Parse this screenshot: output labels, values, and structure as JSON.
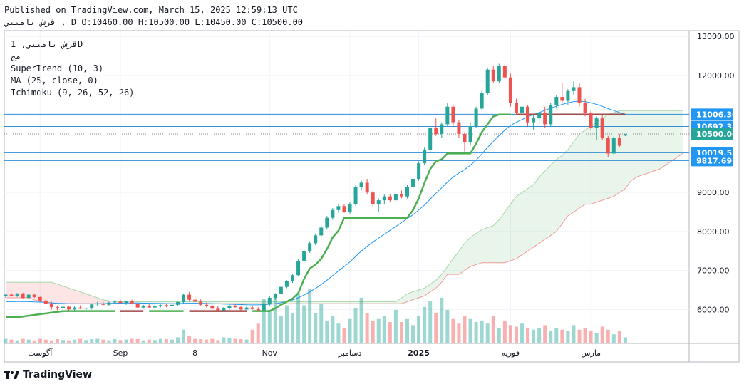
{
  "header": {
    "published": "Published on TradingView.com, March 15, 2025 12:59:13 UTC",
    "ohlc": "قرش  ناميبي , D O:10460.00 H:10500.00 L:10450.00 C:10500.00"
  },
  "legend": {
    "symbol": "قرش ناميبي, 1D",
    "alt_name": "مج",
    "supertrend": "SuperTrend (10, 3)",
    "ma": "MA (25, close, 0)",
    "ichimoku": "Ichimoku (9, 26, 52, 26)"
  },
  "brand": {
    "name": "TradingView",
    "logo_icon": "tradingview-logo-icon"
  },
  "colors": {
    "up": "#26a69a",
    "down": "#ef5350",
    "supertrend_up": "#4caf50",
    "supertrend_down": "#a04a4a",
    "ma": "#2196f3",
    "level": "#2f8ed6",
    "price_tag": "#26a69a",
    "level_tag": "#2196f3"
  },
  "chart_data": {
    "type": "candlestick",
    "ylim": [
      5130,
      13150
    ],
    "y_ticks": [
      "13000.00",
      "12000.00",
      "9000.00",
      "8000.00",
      "7000.00",
      "6000.00"
    ],
    "x_labels": [
      "آگوست",
      "Sep",
      "8",
      "Nov",
      "دسامبر",
      "2025",
      "فوريه",
      "مارس"
    ],
    "x_label_positions": [
      6,
      20,
      33,
      46,
      60,
      72,
      88,
      102
    ],
    "levels": [
      11006.3,
      10692.33,
      10019.53,
      9817.69
    ],
    "level_labels": [
      "11006.30",
      "10692.33",
      "10019.53",
      "9817.69"
    ],
    "current_price": 10500.0,
    "current_price_label": "10500.00",
    "candles": [
      [
        6350,
        6400,
        6300,
        6380
      ],
      [
        6380,
        6420,
        6330,
        6340
      ],
      [
        6340,
        6420,
        6320,
        6410
      ],
      [
        6410,
        6430,
        6280,
        6300
      ],
      [
        6300,
        6390,
        6250,
        6380
      ],
      [
        6380,
        6400,
        6300,
        6320
      ],
      [
        6320,
        6330,
        6200,
        6230
      ],
      [
        6230,
        6260,
        6130,
        6150
      ],
      [
        6150,
        6200,
        6000,
        6060
      ],
      [
        6060,
        6100,
        5980,
        6030
      ],
      [
        6030,
        6090,
        6010,
        6070
      ],
      [
        6070,
        6090,
        5980,
        6000
      ],
      [
        6000,
        6080,
        5960,
        6050
      ],
      [
        6050,
        6110,
        6010,
        6020
      ],
      [
        6020,
        6060,
        5970,
        6040
      ],
      [
        6040,
        6140,
        6000,
        6130
      ],
      [
        6130,
        6200,
        6080,
        6150
      ],
      [
        6150,
        6200,
        6100,
        6120
      ],
      [
        6120,
        6200,
        6080,
        6180
      ],
      [
        6180,
        6240,
        6150,
        6200
      ],
      [
        6200,
        6250,
        6150,
        6170
      ],
      [
        6170,
        6230,
        6120,
        6210
      ],
      [
        6210,
        6250,
        6130,
        6150
      ],
      [
        6150,
        6180,
        6030,
        6050
      ],
      [
        6050,
        6120,
        6020,
        6100
      ],
      [
        6100,
        6140,
        6030,
        6050
      ],
      [
        6050,
        6120,
        6010,
        6090
      ],
      [
        6090,
        6130,
        6050,
        6110
      ],
      [
        6110,
        6150,
        6060,
        6080
      ],
      [
        6080,
        6140,
        6050,
        6120
      ],
      [
        6120,
        6200,
        6100,
        6190
      ],
      [
        6190,
        6400,
        6160,
        6380
      ],
      [
        6380,
        6450,
        6200,
        6250
      ],
      [
        6250,
        6320,
        6180,
        6200
      ],
      [
        6200,
        6260,
        6100,
        6120
      ],
      [
        6120,
        6180,
        6050,
        6080
      ],
      [
        6080,
        6120,
        6000,
        6020
      ],
      [
        6020,
        6080,
        5950,
        5980
      ],
      [
        5980,
        6060,
        5950,
        6040
      ],
      [
        6040,
        6120,
        6000,
        6100
      ],
      [
        6100,
        6150,
        6040,
        6060
      ],
      [
        6060,
        6100,
        5980,
        6000
      ],
      [
        6000,
        6080,
        5960,
        6050
      ],
      [
        6050,
        6100,
        5990,
        6010
      ],
      [
        6010,
        6060,
        5950,
        5980
      ],
      [
        5980,
        6200,
        5960,
        6150
      ],
      [
        6150,
        6350,
        6100,
        6300
      ],
      [
        6300,
        6420,
        6250,
        6400
      ],
      [
        6400,
        6600,
        6380,
        6580
      ],
      [
        6580,
        6750,
        6550,
        6720
      ],
      [
        6720,
        6900,
        6680,
        6880
      ],
      [
        6880,
        7300,
        6850,
        7250
      ],
      [
        7250,
        7550,
        7200,
        7500
      ],
      [
        7500,
        7750,
        7450,
        7700
      ],
      [
        7700,
        7950,
        7650,
        7900
      ],
      [
        7900,
        8150,
        7850,
        8100
      ],
      [
        8100,
        8400,
        8050,
        8350
      ],
      [
        8350,
        8600,
        8300,
        8550
      ],
      [
        8550,
        8700,
        8480,
        8650
      ],
      [
        8650,
        8700,
        8480,
        8500
      ],
      [
        8500,
        8750,
        8450,
        8700
      ],
      [
        8700,
        9200,
        8650,
        9150
      ],
      [
        9150,
        9300,
        9050,
        9250
      ],
      [
        9250,
        9350,
        8950,
        9000
      ],
      [
        9000,
        9050,
        8650,
        8700
      ],
      [
        8700,
        8850,
        8500,
        8800
      ],
      [
        8800,
        8950,
        8700,
        8900
      ],
      [
        8900,
        8950,
        8750,
        8800
      ],
      [
        8800,
        9000,
        8750,
        8950
      ],
      [
        8950,
        9050,
        8850,
        8900
      ],
      [
        8900,
        9200,
        8850,
        9150
      ],
      [
        9150,
        9400,
        9100,
        9350
      ],
      [
        9350,
        9800,
        9300,
        9750
      ],
      [
        9750,
        10150,
        9700,
        10100
      ],
      [
        10100,
        10700,
        10050,
        10650
      ],
      [
        10650,
        10900,
        10450,
        10500
      ],
      [
        10500,
        10800,
        10400,
        10750
      ],
      [
        10750,
        11300,
        10700,
        11200
      ],
      [
        11200,
        11250,
        10700,
        10800
      ],
      [
        10800,
        10850,
        10400,
        10500
      ],
      [
        10500,
        10550,
        10050,
        10300
      ],
      [
        10300,
        10800,
        10200,
        10700
      ],
      [
        10700,
        11200,
        10650,
        11150
      ],
      [
        11150,
        11600,
        11100,
        11550
      ],
      [
        11550,
        12200,
        11500,
        12150
      ],
      [
        12150,
        12250,
        11800,
        11850
      ],
      [
        11850,
        12300,
        11800,
        12250
      ],
      [
        12250,
        12300,
        11900,
        11950
      ],
      [
        11950,
        12050,
        11200,
        11300
      ],
      [
        11300,
        11400,
        11000,
        11050
      ],
      [
        11050,
        11250,
        10900,
        11200
      ],
      [
        11200,
        11250,
        10700,
        10800
      ],
      [
        10800,
        11000,
        10600,
        10900
      ],
      [
        10900,
        11100,
        10750,
        11050
      ],
      [
        11050,
        11200,
        10650,
        10750
      ],
      [
        10750,
        11300,
        10700,
        11250
      ],
      [
        11250,
        11500,
        11150,
        11450
      ],
      [
        11450,
        11800,
        11300,
        11350
      ],
      [
        11350,
        11650,
        11250,
        11600
      ],
      [
        11600,
        11850,
        11500,
        11700
      ],
      [
        11700,
        11800,
        11200,
        11300
      ],
      [
        11300,
        11400,
        10950,
        11050
      ],
      [
        11050,
        11100,
        10600,
        10650
      ],
      [
        10650,
        10950,
        10350,
        10900
      ],
      [
        10900,
        11000,
        10350,
        10400
      ],
      [
        10400,
        10450,
        9900,
        10000
      ],
      [
        10000,
        10450,
        9950,
        10400
      ],
      [
        10400,
        10500,
        10150,
        10200
      ],
      [
        10460,
        10500,
        10450,
        10500
      ]
    ],
    "volumes": [
      0.3,
      0.25,
      0.2,
      0.3,
      0.25,
      0.2,
      0.3,
      0.25,
      0.2,
      0.28,
      0.22,
      0.2,
      0.25,
      0.3,
      0.22,
      0.28,
      0.3,
      0.25,
      0.2,
      0.28,
      0.22,
      0.25,
      0.3,
      0.28,
      0.2,
      0.25,
      0.22,
      0.3,
      0.28,
      0.25,
      0.4,
      0.9,
      0.5,
      0.3,
      0.28,
      0.25,
      0.3,
      0.22,
      0.4,
      0.35,
      0.3,
      0.28,
      0.25,
      0.9,
      1.3,
      2.9,
      2.2,
      3.2,
      1.8,
      2.5,
      2.0,
      3.3,
      2.5,
      3.6,
      2.0,
      2.6,
      1.5,
      1.8,
      1.3,
      1.0,
      1.6,
      2.3,
      3.0,
      2.0,
      1.5,
      1.6,
      1.8,
      1.4,
      2.2,
      1.4,
      1.6,
      1.2,
      1.8,
      2.4,
      2.8,
      2.0,
      3.0,
      2.2,
      1.6,
      1.3,
      1.8,
      1.6,
      1.4,
      1.5,
      1.3,
      1.8,
      1.0,
      1.5,
      1.2,
      1.1,
      1.3,
      1.0,
      0.9,
      1.0,
      1.2,
      0.8,
      1.0,
      0.9,
      0.8,
      1.2,
      0.9,
      1.0,
      0.8,
      0.7,
      1.1,
      0.9,
      0.6,
      0.8,
      0.4
    ],
    "ma": [
      6200,
      6200,
      6205,
      6205,
      6200,
      6195,
      6190,
      6180,
      6170,
      6160,
      6155,
      6150,
      6148,
      6145,
      6145,
      6145,
      6148,
      6150,
      6155,
      6160,
      6162,
      6165,
      6166,
      6165,
      6163,
      6160,
      6158,
      6155,
      6152,
      6150,
      6152,
      6158,
      6160,
      6160,
      6158,
      6155,
      6150,
      6145,
      6140,
      6135,
      6130,
      6125,
      6120,
      6118,
      6118,
      6125,
      6135,
      6150,
      6175,
      6205,
      6245,
      6300,
      6370,
      6450,
      6540,
      6640,
      6750,
      6870,
      6990,
      7100,
      7220,
      7360,
      7500,
      7620,
      7730,
      7830,
      7930,
      8030,
      8130,
      8230,
      8330,
      8430,
      8550,
      8680,
      8830,
      8980,
      9120,
      9270,
      9400,
      9500,
      9590,
      9700,
      9830,
      9990,
      10160,
      10310,
      10460,
      10600,
      10720,
      10800,
      10870,
      10940,
      11000,
      11050,
      11110,
      11160,
      11210,
      11260,
      11300,
      11330,
      11340,
      11330,
      11300,
      11260,
      11210,
      11150,
      11100,
      11050,
      11006
    ],
    "supertrend": [
      5800,
      5800,
      5800,
      5820,
      5840,
      5860,
      5880,
      5900,
      5920,
      5940,
      5960,
      5960,
      5960,
      5960,
      5960,
      5960,
      5960,
      5960,
      5960,
      5960,
      5960,
      5960,
      5960,
      5960,
      5960,
      5960,
      5960,
      5960,
      5960,
      5960,
      5960,
      5960,
      5960,
      5960,
      5960,
      5960,
      5960,
      5960,
      5960,
      5960,
      5960,
      5960,
      5960,
      5960,
      5960,
      5960,
      5960,
      6030,
      6120,
      6200,
      6280,
      6420,
      6780,
      7050,
      7150,
      7300,
      7550,
      7850,
      8020,
      8350,
      8350,
      8350,
      8350,
      8350,
      8350,
      8350,
      8350,
      8350,
      8350,
      8350,
      8350,
      8550,
      8850,
      9250,
      9600,
      9800,
      9850,
      10000,
      10000,
      10000,
      10000,
      10000,
      10250,
      10550,
      10750,
      10950,
      11000,
      11000,
      11000,
      11000,
      11000,
      11000,
      11000,
      11000,
      11000,
      11000,
      11000,
      11000,
      11000,
      11000,
      11000,
      11000,
      11000,
      11000,
      11000,
      11000,
      11000,
      11000,
      11000
    ],
    "supertrend_colors": [
      "up",
      "up",
      "up",
      "up",
      "up",
      "up",
      "up",
      "up",
      "up",
      "up",
      "up",
      "up",
      "up",
      "up",
      "up",
      "up",
      "up",
      "up",
      "up",
      "up",
      "down",
      "down",
      "down",
      "down",
      "down",
      "up",
      "up",
      "up",
      "up",
      "up",
      "up",
      "up",
      "down",
      "down",
      "down",
      "down",
      "down",
      "down",
      "down",
      "down",
      "down",
      "down",
      "down",
      "up",
      "up",
      "up",
      "up",
      "up",
      "up",
      "up",
      "up",
      "up",
      "up",
      "up",
      "up",
      "up",
      "up",
      "up",
      "up",
      "up",
      "up",
      "up",
      "up",
      "up",
      "up",
      "up",
      "up",
      "up",
      "up",
      "up",
      "up",
      "up",
      "up",
      "up",
      "up",
      "up",
      "up",
      "up",
      "up",
      "up",
      "up",
      "up",
      "up",
      "up",
      "up",
      "up",
      "up",
      "up",
      "up",
      "down",
      "down",
      "down",
      "down",
      "down",
      "down",
      "down",
      "down",
      "down",
      "down",
      "down",
      "down",
      "down",
      "down",
      "down",
      "down",
      "down",
      "down",
      "down",
      "down"
    ],
    "cloud_upper": [
      6700,
      6700,
      6700,
      6700,
      6700,
      6700,
      6700,
      6700,
      6700,
      6650,
      6600,
      6550,
      6500,
      6450,
      6400,
      6350,
      6300,
      6250,
      6220,
      6200,
      6200,
      6200,
      6200,
      6200,
      6200,
      6200,
      6200,
      6200,
      6200,
      6200,
      6200,
      6200,
      6200,
      6200,
      6200,
      6200,
      6200,
      6200,
      6200,
      6200,
      6200,
      6200,
      6200,
      6200,
      6200,
      6200,
      6200,
      6200,
      6200,
      6200,
      6200,
      6200,
      6200,
      6200,
      6200,
      6200,
      6200,
      6200,
      6200,
      6200,
      6200,
      6200,
      6200,
      6200,
      6200,
      6200,
      6200,
      6200,
      6200,
      6300,
      6400,
      6450,
      6500,
      6550,
      6650,
      6750,
      6900,
      7100,
      7300,
      7500,
      7700,
      7850,
      7950,
      8050,
      8100,
      8150,
      8300,
      8500,
      8700,
      8900,
      9000,
      9100,
      9200,
      9400,
      9550,
      9700,
      9850,
      9950,
      10100,
      10300,
      10500,
      10600,
      10700,
      10800,
      10900,
      11000,
      11050,
      11100,
      11100,
      11100,
      11100,
      11100,
      11100,
      11100,
      11100,
      11100,
      11100,
      11100,
      11100
    ],
    "cloud_lower": [
      6300,
      6300,
      6300,
      6300,
      6300,
      6250,
      6200,
      6180,
      6160,
      6150,
      6150,
      6150,
      6150,
      6150,
      6150,
      6150,
      6150,
      6150,
      6150,
      6150,
      6150,
      6150,
      6150,
      6150,
      6150,
      6150,
      6150,
      6150,
      6150,
      6150,
      6150,
      6150,
      6150,
      6150,
      6150,
      6150,
      6150,
      6150,
      6150,
      6150,
      6150,
      6150,
      6150,
      6150,
      6150,
      6150,
      6150,
      6150,
      6150,
      6150,
      6150,
      6150,
      6150,
      6150,
      6150,
      6150,
      6150,
      6150,
      6150,
      6150,
      6150,
      6150,
      6150,
      6150,
      6150,
      6150,
      6150,
      6150,
      6150,
      6150,
      6200,
      6250,
      6300,
      6350,
      6450,
      6550,
      6700,
      6900,
      6900,
      6900,
      7000,
      7100,
      7150,
      7200,
      7200,
      7200,
      7200,
      7200,
      7250,
      7300,
      7400,
      7500,
      7600,
      7700,
      7800,
      7900,
      8000,
      8200,
      8400,
      8500,
      8600,
      8700,
      8700,
      8750,
      8800,
      8850,
      8900,
      9000,
      9100,
      9300,
      9400,
      9450,
      9500,
      9550,
      9600,
      9700,
      9800,
      9900,
      10000
    ],
    "cloud_colors": [
      "bear",
      "bear",
      "bear",
      "bear",
      "bear",
      "bear",
      "bear",
      "bear",
      "bear",
      "bear",
      "bear",
      "bear",
      "bear",
      "bear",
      "bear",
      "bear",
      "bear",
      "bear",
      "bear",
      "bear",
      "bull",
      "bull",
      "bull",
      "bull",
      "bull",
      "bull",
      "bull",
      "bull",
      "bull",
      "bull",
      "bull",
      "bull",
      "bull",
      "bull",
      "bull",
      "bull",
      "bull",
      "bull",
      "bull",
      "bull",
      "bull",
      "bull",
      "bull",
      "bull",
      "bull",
      "bull",
      "bull",
      "bull",
      "bull",
      "bull",
      "bull",
      "bull",
      "bull",
      "bull",
      "bull",
      "bull",
      "bull",
      "bull",
      "bull",
      "bull",
      "bull",
      "bull",
      "bull",
      "bull",
      "bull",
      "bull",
      "bull",
      "bull",
      "bull",
      "bull",
      "bull",
      "bull",
      "bull",
      "bull",
      "bull",
      "bull",
      "bull",
      "bull",
      "bull",
      "bull",
      "bull",
      "bull",
      "bull",
      "bull",
      "bull",
      "bull",
      "bull",
      "bull",
      "bull",
      "bull",
      "bull",
      "bull",
      "bull",
      "bull",
      "bull",
      "bull",
      "bull",
      "bull",
      "bull",
      "bull",
      "bull",
      "bull",
      "bull",
      "bull",
      "bull",
      "bull",
      "bull",
      "bull",
      "bull",
      "bull",
      "bull",
      "bull",
      "bull",
      "bull",
      "bull",
      "bull",
      "bull",
      "bull",
      "bull"
    ],
    "cloud_offset": 26
  }
}
